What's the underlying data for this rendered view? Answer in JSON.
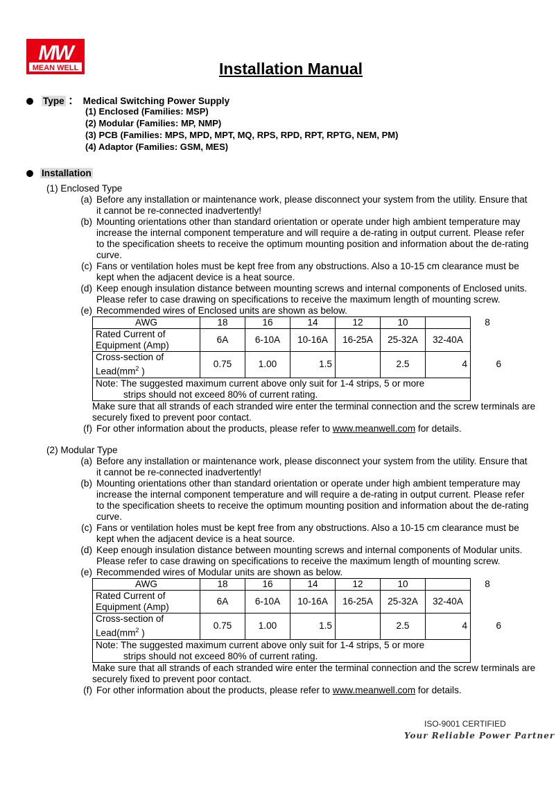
{
  "logo": {
    "mark": "MW",
    "name": "MEAN WELL",
    "color": "#e60012"
  },
  "title": "Installation Manual",
  "type": {
    "label": "Type",
    "colon": "：",
    "value": "Medical Switching Power Supply",
    "items": [
      "(1)  Enclosed (Families: MSP)",
      "(2)  Modular (Families: MP, NMP)",
      "(3)   PCB (Families: MPS, MPD, MPT, MQ, RPS, RPD, RPT, RPTG, NEM, PM)",
      "(4)  Adaptor (Families: GSM, MES)"
    ]
  },
  "installation": {
    "label": "Installation"
  },
  "sections": [
    {
      "heading": "(1)  Enclosed Type",
      "items": [
        {
          "label": "(a)",
          "text": "Before any installation or maintenance work, please disconnect your system from the utility. Ensure that it cannot be re-connected inadvertently!"
        },
        {
          "label": "(b)",
          "text": "Mounting orientations other than standard orientation or operate under high ambient temperature may increase the internal component temperature and will require a de-rating in output current. Please refer to the specification sheets to receive the optimum mounting position and information about the de-rating curve."
        },
        {
          "label": "(c)",
          "text": "Fans or ventilation holes must be kept free from any obstructions. Also a 10-15 cm clearance must be kept when the adjacent device is a heat source."
        },
        {
          "label": "(d)",
          "text": "Keep enough insulation distance between mounting screws and internal components of Enclosed units. Please refer to case drawing on specifications to receive the maximum length of mounting screw."
        },
        {
          "label": "(e)",
          "text": "Recommended wires of Enclosed units are shown as below."
        }
      ],
      "after_table": "Make sure that all strands of each stranded wire enter the terminal connection and the screw terminals are securely fixed to prevent poor contact.",
      "f": {
        "label": "(f)",
        "pre": "For other information about the products, please refer to ",
        "link": "www.meanwell.com",
        "post": " for details."
      }
    },
    {
      "heading": "(2)  Modular Type",
      "items": [
        {
          "label": "(a)",
          "text": "Before any installation or maintenance work, please disconnect your system from the utility. Ensure that it cannot be re-connected inadvertently!"
        },
        {
          "label": "(b)",
          "text": "Mounting orientations other than standard orientation or operate under high ambient temperature may increase the internal component temperature and will require a de-rating in output current. Please refer to the specification sheets to receive the optimum mounting position and information about the de-rating curve."
        },
        {
          "label": "(c)",
          "text": "Fans or ventilation holes must be kept free from any obstructions. Also a 10-15 cm clearance must be kept when the adjacent device is a heat source."
        },
        {
          "label": "(d)",
          "text": "Keep enough insulation distance between mounting screws and internal components of Modular units. Please refer to case drawing on specifications to receive the maximum length of mounting screw."
        },
        {
          "label": "(e)",
          "text": "Recommended wires of Modular units are shown as below."
        }
      ],
      "after_table": "Make sure that all strands of each stranded wire enter the terminal connection and the screw terminals are securely fixed to prevent poor contact.",
      "f": {
        "label": "(f)",
        "pre": "For other information about the products, please refer to ",
        "link": "www.meanwell.com",
        "post": " for details."
      }
    }
  ],
  "wire_table": {
    "awg_label": "AWG",
    "awg": [
      "18",
      "16",
      "14",
      "12",
      "10",
      "",
      "8"
    ],
    "current_label": "Rated Current of Equipment (Amp)",
    "current": [
      "6A",
      "6-10A",
      "10-16A",
      "16-25A",
      "25-32A",
      "32-40A",
      ""
    ],
    "cross_label": "Cross-section of Lead(mm",
    "cross_sup": "2",
    "cross_label_end": " )",
    "cross": [
      "0.75",
      "1.00",
      "1.5",
      "",
      "2.5",
      "4",
      "6"
    ],
    "note_line1": "Note: The suggested maximum current above only suit for 1-4 strips, 5 or more",
    "note_line2": "strips should not exceed 80% of current rating."
  },
  "footer": {
    "certified": "ISO-9001 CERTIFIED",
    "slogan": "Your Reliable Power Partner"
  }
}
